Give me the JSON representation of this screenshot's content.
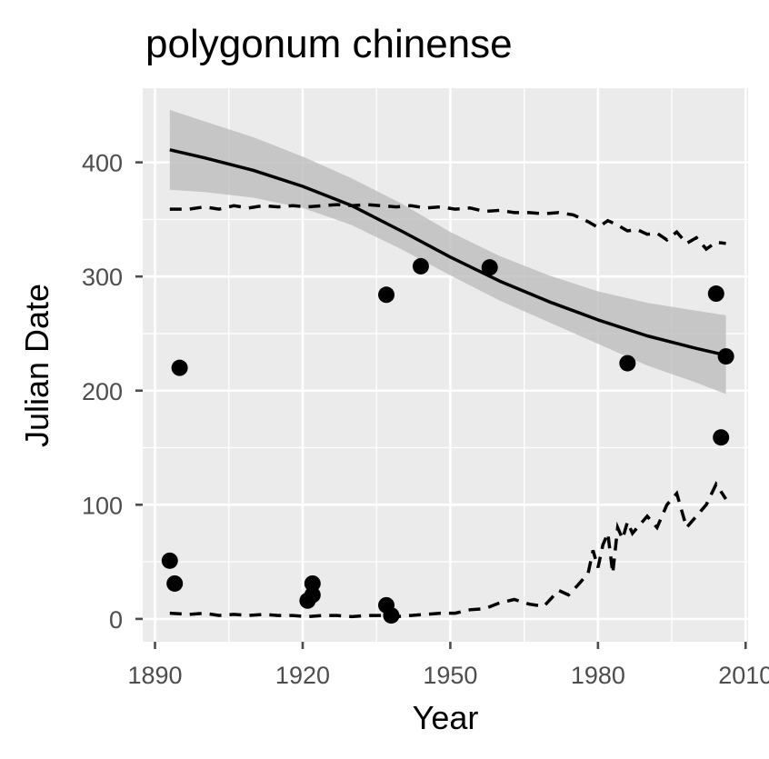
{
  "chart_data": {
    "type": "scatter",
    "title": "polygonum chinense",
    "xlabel": "Year",
    "ylabel": "Julian Date",
    "xlim": [
      1887.5,
      2010.5
    ],
    "ylim": [
      -20,
      465
    ],
    "x_ticks": [
      1890,
      1920,
      1950,
      1980,
      2010
    ],
    "x_tick_labels": [
      "1890",
      "1920",
      "1950",
      "1980",
      "2010"
    ],
    "y_ticks": [
      0,
      100,
      200,
      300,
      400
    ],
    "y_tick_labels": [
      "0",
      "100",
      "200",
      "300",
      "400"
    ],
    "grid": true,
    "legend": "none",
    "colors": {
      "panel": "#ebebeb",
      "grid": "#ffffff",
      "points": "#000000",
      "ribbon": "#bdbdbd",
      "trend": "#000000",
      "ticks": "#4d4d4d"
    },
    "points": [
      {
        "x": 1893,
        "y": 51
      },
      {
        "x": 1894,
        "y": 31
      },
      {
        "x": 1895,
        "y": 220
      },
      {
        "x": 1921,
        "y": 16
      },
      {
        "x": 1922,
        "y": 21
      },
      {
        "x": 1922,
        "y": 31
      },
      {
        "x": 1937,
        "y": 12
      },
      {
        "x": 1937,
        "y": 284
      },
      {
        "x": 1938,
        "y": 3
      },
      {
        "x": 1944,
        "y": 309
      },
      {
        "x": 1958,
        "y": 308
      },
      {
        "x": 1986,
        "y": 224
      },
      {
        "x": 2004,
        "y": 285
      },
      {
        "x": 2005,
        "y": 159
      },
      {
        "x": 2006,
        "y": 230
      }
    ],
    "trend": {
      "x": [
        1893,
        1900,
        1910,
        1920,
        1930,
        1940,
        1950,
        1960,
        1970,
        1980,
        1990,
        2000,
        2006
      ],
      "y": [
        411,
        404,
        393,
        379,
        362,
        340,
        317,
        296,
        278,
        262,
        248,
        237,
        231
      ],
      "lower": [
        376,
        374,
        369,
        360,
        345,
        324,
        301,
        279,
        260,
        241,
        222,
        207,
        197
      ],
      "upper": [
        446,
        436,
        422,
        405,
        386,
        364,
        339,
        318,
        301,
        287,
        277,
        270,
        266
      ]
    },
    "upper_dashed": {
      "x": [
        1893,
        1897,
        1900,
        1903,
        1906,
        1909,
        1912,
        1915,
        1918,
        1921,
        1924,
        1927,
        1930,
        1933,
        1936,
        1939,
        1942,
        1945,
        1948,
        1951,
        1954,
        1957,
        1960,
        1963,
        1966,
        1969,
        1972,
        1975,
        1978,
        1980,
        1982,
        1984,
        1986,
        1988,
        1990,
        1992,
        1994,
        1996,
        1998,
        2000,
        2002,
        2004,
        2006
      ],
      "y": [
        359,
        359,
        361,
        359,
        362,
        360,
        362,
        361,
        362,
        361,
        362,
        363,
        362,
        363,
        362,
        361,
        362,
        360,
        361,
        359,
        360,
        357,
        358,
        356,
        356,
        355,
        356,
        354,
        348,
        343,
        349,
        345,
        340,
        341,
        337,
        338,
        332,
        339,
        329,
        334,
        324,
        330,
        329
      ]
    },
    "lower_dashed": {
      "x": [
        1893,
        1897,
        1900,
        1903,
        1906,
        1909,
        1912,
        1915,
        1918,
        1921,
        1924,
        1927,
        1930,
        1933,
        1936,
        1939,
        1942,
        1945,
        1948,
        1951,
        1954,
        1957,
        1960,
        1963,
        1966,
        1969,
        1972,
        1974,
        1976,
        1978,
        1979,
        1980,
        1981,
        1982,
        1983,
        1984,
        1985,
        1986,
        1987,
        1988,
        1990,
        1992,
        1994,
        1996,
        1998,
        2000,
        2002,
        2004,
        2006
      ],
      "y": [
        5,
        4,
        5,
        3,
        4,
        3,
        4,
        3,
        3,
        2,
        3,
        3,
        2,
        3,
        3,
        2,
        3,
        4,
        5,
        5,
        8,
        9,
        14,
        17,
        13,
        11,
        25,
        21,
        30,
        40,
        60,
        45,
        65,
        75,
        40,
        80,
        70,
        85,
        75,
        80,
        90,
        80,
        100,
        110,
        80,
        90,
        100,
        118,
        105
      ]
    }
  }
}
